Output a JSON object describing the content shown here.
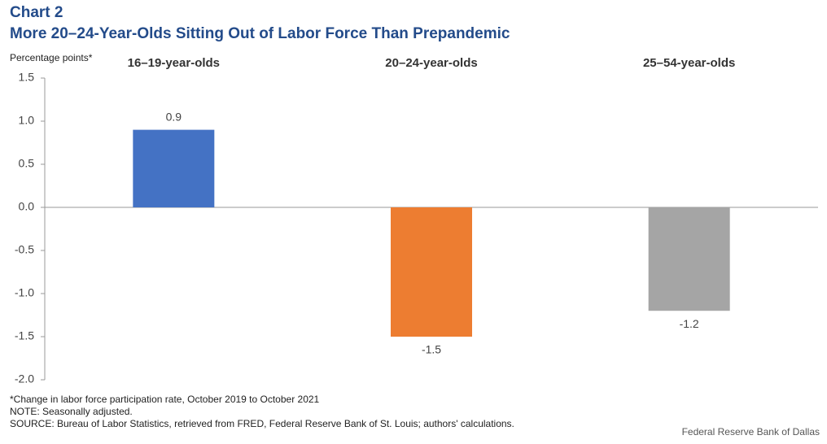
{
  "chart_data": {
    "type": "bar",
    "title": "Chart 2",
    "subtitle": "More 20–24-Year-Olds Sitting Out of Labor Force Than Prepandemic",
    "y_label": "Percentage points*",
    "categories": [
      "16–19-year-olds",
      "20–24-year-olds",
      "25–54-year-olds"
    ],
    "values": [
      0.9,
      -1.5,
      -1.2
    ],
    "colors": [
      "#4472c4",
      "#ed7d31",
      "#a5a5a5"
    ],
    "ylim": [
      -2.0,
      1.5
    ],
    "yticks": [
      1.5,
      {
        "value": 1.0,
        "label": "1.0"
      },
      0.5,
      {
        "value": 0.0,
        "label": "0.0"
      },
      -0.5,
      {
        "value": -1.0,
        "label": "-1.0"
      },
      -1.5,
      {
        "value": -2.0,
        "label": "-2.0"
      }
    ],
    "notes": [
      "*Change in labor force participation rate, October 2019 to October 2021",
      "NOTE: Seasonally adjusted.",
      "SOURCE: Bureau of Labor Statistics, retrieved from FRED, Federal Reserve Bank of St. Louis; authors' calculations."
    ],
    "credit": "Federal Reserve Bank of Dallas"
  }
}
